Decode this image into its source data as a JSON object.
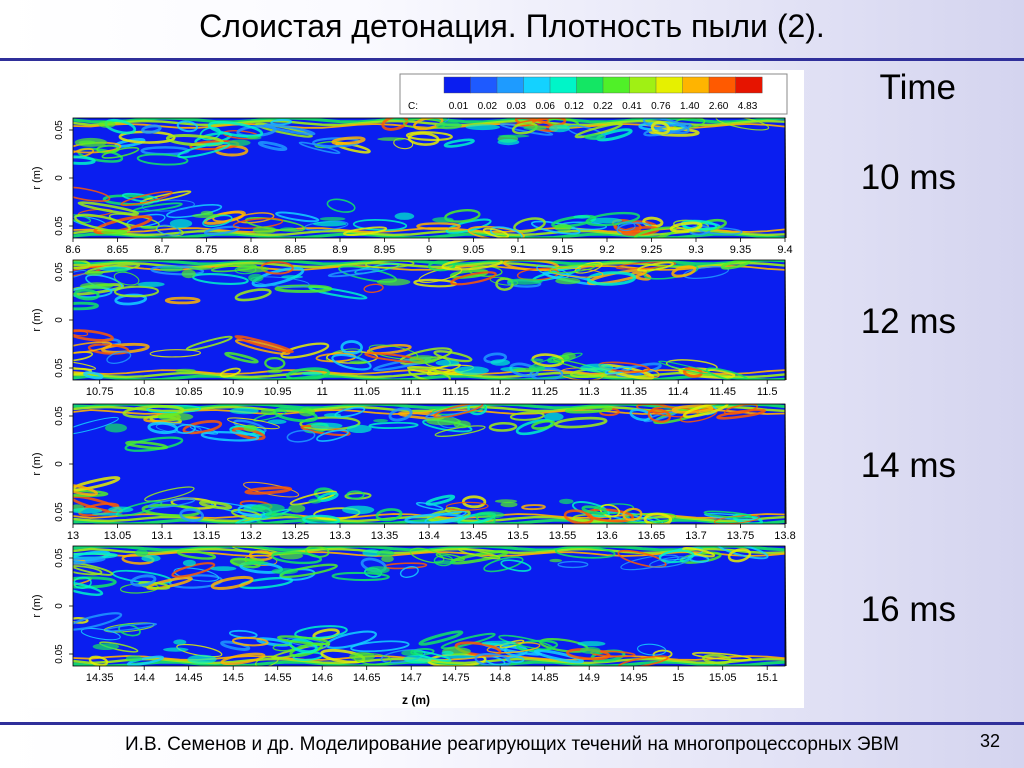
{
  "title": "Слоистая детонация. Плотность пыли (2).",
  "footer": "И.В. Семенов и др. Моделирование реагирующих течений на многопроцессорных ЭВМ",
  "page_number": "32",
  "time_header": "Time",
  "colors": {
    "rule": "#2f2f9a",
    "flow_background": "#0a1ef0"
  },
  "chart_data": {
    "type": "heatmap",
    "colorbar": {
      "label": "C:",
      "ticks": [
        "0.01",
        "0.02",
        "0.03",
        "0.06",
        "0.12",
        "0.22",
        "0.41",
        "0.76",
        "1.40",
        "2.60",
        "4.83"
      ],
      "colors": [
        "#0a1ef0",
        "#1e5aff",
        "#1e9bff",
        "#14d2ff",
        "#00f5c8",
        "#14e664",
        "#50f028",
        "#a0f014",
        "#e6f000",
        "#ffb400",
        "#ff5a00",
        "#e61400"
      ]
    },
    "xlabel": "z (m)",
    "ylabel": "r (m)",
    "y_ticks": [
      "0.05",
      "0",
      "0.05"
    ],
    "panels": [
      {
        "time": "10 ms",
        "x_ticks": [
          "8.6",
          "8.65",
          "8.7",
          "8.75",
          "8.8",
          "8.85",
          "8.9",
          "8.95",
          "9",
          "9.05",
          "9.1",
          "9.15",
          "9.2",
          "9.25",
          "9.3",
          "9.35",
          "9.4"
        ],
        "xlim": [
          8.6,
          9.4
        ],
        "front_z": 9.4
      },
      {
        "time": "12 ms",
        "x_ticks": [
          "10.75",
          "10.8",
          "10.85",
          "10.9",
          "10.95",
          "11",
          "11.05",
          "11.1",
          "11.15",
          "11.2",
          "11.25",
          "11.3",
          "11.35",
          "11.4",
          "11.45",
          "11.5"
        ],
        "xlim": [
          10.72,
          11.52
        ],
        "front_z": 11.52
      },
      {
        "time": "14 ms",
        "x_ticks": [
          "13",
          "13.05",
          "13.1",
          "13.15",
          "13.2",
          "13.25",
          "13.3",
          "13.35",
          "13.4",
          "13.45",
          "13.5",
          "13.55",
          "13.6",
          "13.65",
          "13.7",
          "13.75",
          "13.8"
        ],
        "xlim": [
          13.0,
          13.8
        ],
        "front_z": 13.8
      },
      {
        "time": "16 ms",
        "x_ticks": [
          "14.35",
          "14.4",
          "14.45",
          "14.5",
          "14.55",
          "14.6",
          "14.65",
          "14.7",
          "14.75",
          "14.8",
          "14.85",
          "14.9",
          "14.95",
          "15",
          "15.05",
          "15.1"
        ],
        "xlim": [
          14.32,
          15.12
        ],
        "front_z": 15.12
      }
    ]
  }
}
